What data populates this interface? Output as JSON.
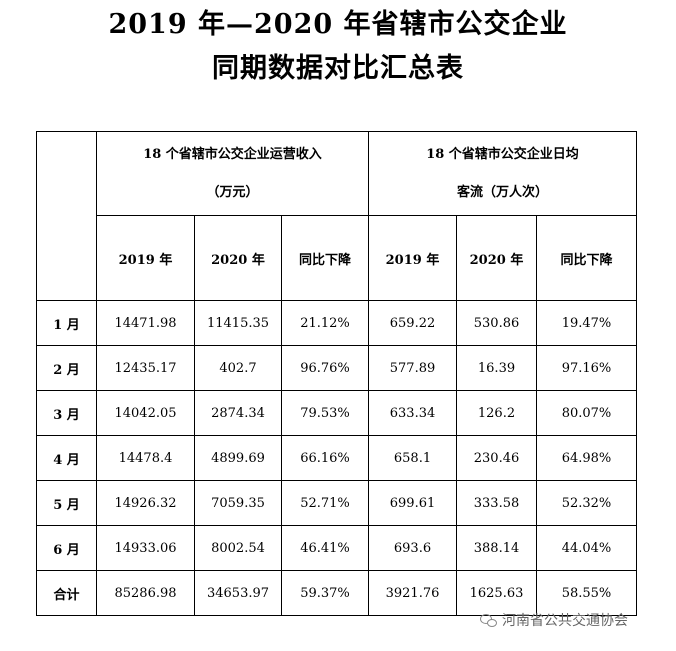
{
  "title": {
    "line1": "2019 年—2020 年省辖市公交企业",
    "line2": "同期数据对比汇总表"
  },
  "table": {
    "group1_line1": "18 个省辖市公交企业运营收入",
    "group1_line2": "（万元）",
    "group2_line1": "18 个省辖市公交企业日均",
    "group2_line2": "客流（万人次）",
    "sub": [
      "2019 年",
      "2020 年",
      "同比下降",
      "2019 年",
      "2020 年",
      "同比下降"
    ],
    "rows": [
      {
        "label": "1 月",
        "cells": [
          "14471.98",
          "11415.35",
          "21.12%",
          "659.22",
          "530.86",
          "19.47%"
        ]
      },
      {
        "label": "2 月",
        "cells": [
          "12435.17",
          "402.7",
          "96.76%",
          "577.89",
          "16.39",
          "97.16%"
        ]
      },
      {
        "label": "3 月",
        "cells": [
          "14042.05",
          "2874.34",
          "79.53%",
          "633.34",
          "126.2",
          "80.07%"
        ]
      },
      {
        "label": "4 月",
        "cells": [
          "14478.4",
          "4899.69",
          "66.16%",
          "658.1",
          "230.46",
          "64.98%"
        ]
      },
      {
        "label": "5 月",
        "cells": [
          "14926.32",
          "7059.35",
          "52.71%",
          "699.61",
          "333.58",
          "52.32%"
        ]
      },
      {
        "label": "6 月",
        "cells": [
          "14933.06",
          "8002.54",
          "46.41%",
          "693.6",
          "388.14",
          "44.04%"
        ]
      },
      {
        "label": "合计",
        "cells": [
          "85286.98",
          "34653.97",
          "59.37%",
          "3921.76",
          "1625.63",
          "58.55%"
        ]
      }
    ]
  },
  "watermark": {
    "icon": "wechat-icon",
    "text": "河南省公共交通协会"
  }
}
